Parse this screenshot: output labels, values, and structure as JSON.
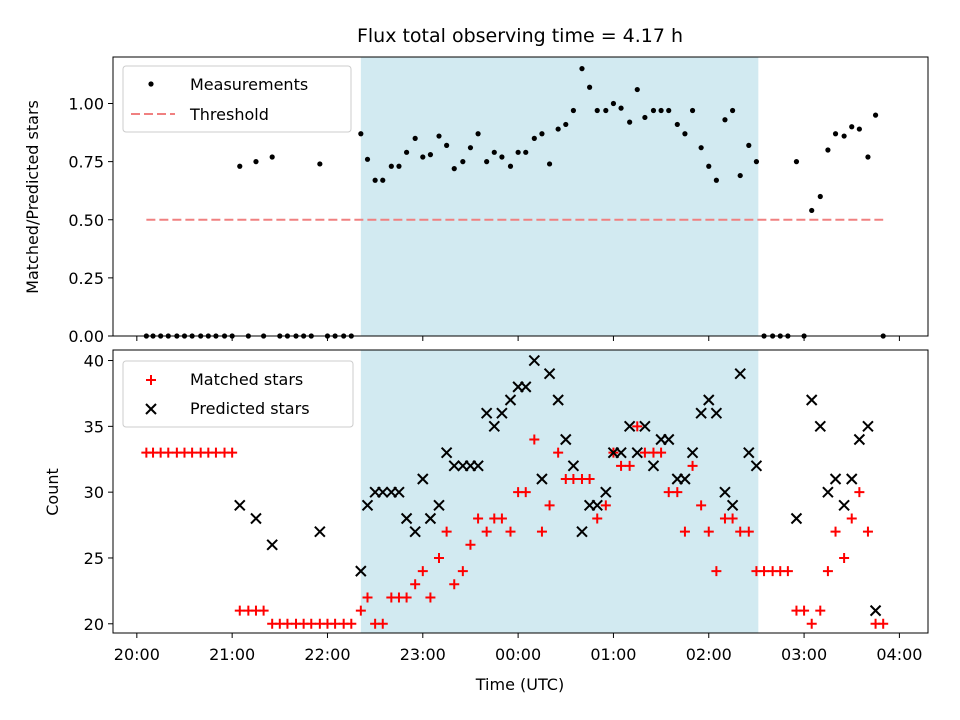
{
  "chart_data": [
    {
      "type": "scatter",
      "title": "Flux total observing time = 4.17 h",
      "ylabel": "Matched/Predicted stars",
      "xlabel": "",
      "ylim": [
        0,
        1.2
      ],
      "yticks": [
        "0.00",
        "0.25",
        "0.50",
        "0.75",
        "1.00"
      ],
      "yticks_values": [
        0,
        0.25,
        0.5,
        0.75,
        1.0
      ],
      "legend_position": "top-left",
      "shaded_region_x": [
        22.35,
        26.52
      ],
      "colors": {
        "measurements": "#000000",
        "threshold": "#f08080",
        "shade": "#add8e6"
      },
      "series": [
        {
          "name": "Measurements",
          "marker": "dot",
          "x": [
            20.1,
            20.17,
            20.25,
            20.33,
            20.42,
            20.5,
            20.58,
            20.67,
            20.75,
            20.83,
            20.92,
            21.0,
            21.08,
            21.17,
            21.25,
            21.33,
            21.42,
            21.5,
            21.58,
            21.67,
            21.75,
            21.83,
            21.92,
            22.0,
            22.08,
            22.17,
            22.25,
            22.35,
            22.42,
            22.5,
            22.58,
            22.67,
            22.75,
            22.83,
            22.92,
            23.0,
            23.08,
            23.17,
            23.25,
            23.33,
            23.42,
            23.5,
            23.58,
            23.67,
            23.75,
            23.83,
            23.92,
            24.0,
            24.08,
            24.17,
            24.25,
            24.33,
            24.42,
            24.5,
            24.58,
            24.67,
            24.75,
            24.83,
            24.92,
            25.0,
            25.08,
            25.17,
            25.25,
            25.33,
            25.42,
            25.5,
            25.58,
            25.67,
            25.75,
            25.83,
            25.92,
            26.0,
            26.08,
            26.17,
            26.25,
            26.33,
            26.42,
            26.5,
            26.58,
            26.67,
            26.75,
            26.83,
            26.92,
            27.0,
            27.08,
            27.17,
            27.25,
            27.33,
            27.42,
            27.5,
            27.58,
            27.67,
            27.75,
            27.83
          ],
          "y": [
            0,
            0,
            0,
            0,
            0,
            0,
            0,
            0,
            0,
            0,
            0,
            0,
            0.73,
            0,
            0.75,
            0,
            0.77,
            0,
            0,
            0,
            0,
            0,
            0.74,
            0,
            0,
            0,
            0,
            0.87,
            0.76,
            0.67,
            0.67,
            0.73,
            0.73,
            0.79,
            0.85,
            0.77,
            0.78,
            0.86,
            0.82,
            0.72,
            0.75,
            0.81,
            0.87,
            0.75,
            0.79,
            0.77,
            0.73,
            0.79,
            0.79,
            0.85,
            0.87,
            0.74,
            0.89,
            0.91,
            0.97,
            1.15,
            1.07,
            0.97,
            0.97,
            1.0,
            0.98,
            0.92,
            1.06,
            0.94,
            0.97,
            0.97,
            0.97,
            0.91,
            0.87,
            0.97,
            0.81,
            0.73,
            0.67,
            0.93,
            0.97,
            0.69,
            0.82,
            0.75,
            0,
            0,
            0,
            0,
            0.75,
            0,
            0.54,
            0.6,
            0.8,
            0.87,
            0.86,
            0.9,
            0.89,
            0.77,
            0.95,
            0
          ]
        },
        {
          "name": "Threshold",
          "style": "dashed",
          "x": [
            20.1,
            27.83
          ],
          "y": [
            0.5,
            0.5
          ]
        }
      ]
    },
    {
      "type": "scatter",
      "title": "",
      "ylabel": "Count",
      "xlabel": "Time (UTC)",
      "ylim": [
        19.3,
        40.8
      ],
      "yticks": [
        "20",
        "25",
        "30",
        "35",
        "40"
      ],
      "yticks_values": [
        20,
        25,
        30,
        35,
        40
      ],
      "xlim": [
        19.75,
        28.3
      ],
      "xticks": [
        "20:00",
        "21:00",
        "22:00",
        "23:00",
        "00:00",
        "01:00",
        "02:00",
        "03:00",
        "04:00"
      ],
      "xticks_values": [
        20,
        21,
        22,
        23,
        24,
        25,
        26,
        27,
        28
      ],
      "legend_position": "top-left",
      "shaded_region_x": [
        22.35,
        26.52
      ],
      "colors": {
        "matched": "#ff0000",
        "predicted": "#000000",
        "shade": "#add8e6"
      },
      "series": [
        {
          "name": "Matched stars",
          "marker": "plus",
          "x": [
            20.1,
            20.17,
            20.25,
            20.33,
            20.42,
            20.5,
            20.58,
            20.67,
            20.75,
            20.83,
            20.92,
            21.0,
            21.08,
            21.17,
            21.25,
            21.33,
            21.42,
            21.5,
            21.58,
            21.67,
            21.75,
            21.83,
            21.92,
            22.0,
            22.08,
            22.17,
            22.25,
            22.35,
            22.42,
            22.5,
            22.58,
            22.67,
            22.75,
            22.83,
            22.92,
            23.0,
            23.08,
            23.17,
            23.25,
            23.33,
            23.42,
            23.5,
            23.58,
            23.67,
            23.75,
            23.83,
            23.92,
            24.0,
            24.08,
            24.17,
            24.25,
            24.33,
            24.42,
            24.5,
            24.58,
            24.67,
            24.75,
            24.83,
            24.92,
            25.0,
            25.08,
            25.17,
            25.25,
            25.33,
            25.42,
            25.5,
            25.58,
            25.67,
            25.75,
            25.83,
            25.92,
            26.0,
            26.08,
            26.17,
            26.25,
            26.33,
            26.42,
            26.5,
            26.58,
            26.67,
            26.75,
            26.83,
            26.92,
            27.0,
            27.08,
            27.17,
            27.25,
            27.33,
            27.42,
            27.5,
            27.58,
            27.67,
            27.75,
            27.83
          ],
          "y": [
            33,
            33,
            33,
            33,
            33,
            33,
            33,
            33,
            33,
            33,
            33,
            33,
            21,
            21,
            21,
            21,
            20,
            20,
            20,
            20,
            20,
            20,
            20,
            20,
            20,
            20,
            20,
            21,
            22,
            20,
            20,
            22,
            22,
            22,
            23,
            24,
            22,
            25,
            27,
            23,
            24,
            26,
            28,
            27,
            28,
            28,
            27,
            30,
            30,
            34,
            27,
            29,
            33,
            31,
            31,
            31,
            31,
            28,
            29,
            33,
            32,
            32,
            35,
            33,
            33,
            33,
            30,
            30,
            27,
            32,
            29,
            27,
            24,
            28,
            28,
            27,
            27,
            24,
            24,
            24,
            24,
            24,
            21,
            21,
            20,
            21,
            24,
            27,
            25,
            28,
            30,
            27,
            20,
            20
          ]
        },
        {
          "name": "Predicted stars",
          "marker": "x",
          "x": [
            21.08,
            21.25,
            21.42,
            21.92,
            22.35,
            22.42,
            22.5,
            22.58,
            22.67,
            22.75,
            22.83,
            22.92,
            23.0,
            23.08,
            23.17,
            23.25,
            23.33,
            23.42,
            23.5,
            23.58,
            23.67,
            23.75,
            23.83,
            23.92,
            24.0,
            24.08,
            24.17,
            24.25,
            24.33,
            24.42,
            24.5,
            24.58,
            24.67,
            24.75,
            24.83,
            24.92,
            25.0,
            25.08,
            25.17,
            25.25,
            25.33,
            25.42,
            25.5,
            25.58,
            25.67,
            25.75,
            25.83,
            25.92,
            26.0,
            26.08,
            26.17,
            26.25,
            26.33,
            26.42,
            26.5,
            26.92,
            27.08,
            27.17,
            27.25,
            27.33,
            27.42,
            27.5,
            27.58,
            27.67,
            27.75
          ],
          "y": [
            29,
            28,
            26,
            27,
            24,
            29,
            30,
            30,
            30,
            30,
            28,
            27,
            31,
            28,
            29,
            33,
            32,
            32,
            32,
            32,
            36,
            35,
            36,
            37,
            38,
            38,
            40,
            31,
            39,
            37,
            34,
            32,
            27,
            29,
            29,
            30,
            33,
            33,
            35,
            33,
            35,
            32,
            34,
            34,
            31,
            31,
            33,
            36,
            37,
            36,
            30,
            29,
            39,
            33,
            32,
            28,
            37,
            35,
            30,
            31,
            29,
            31,
            34,
            35,
            21
          ]
        }
      ]
    }
  ]
}
